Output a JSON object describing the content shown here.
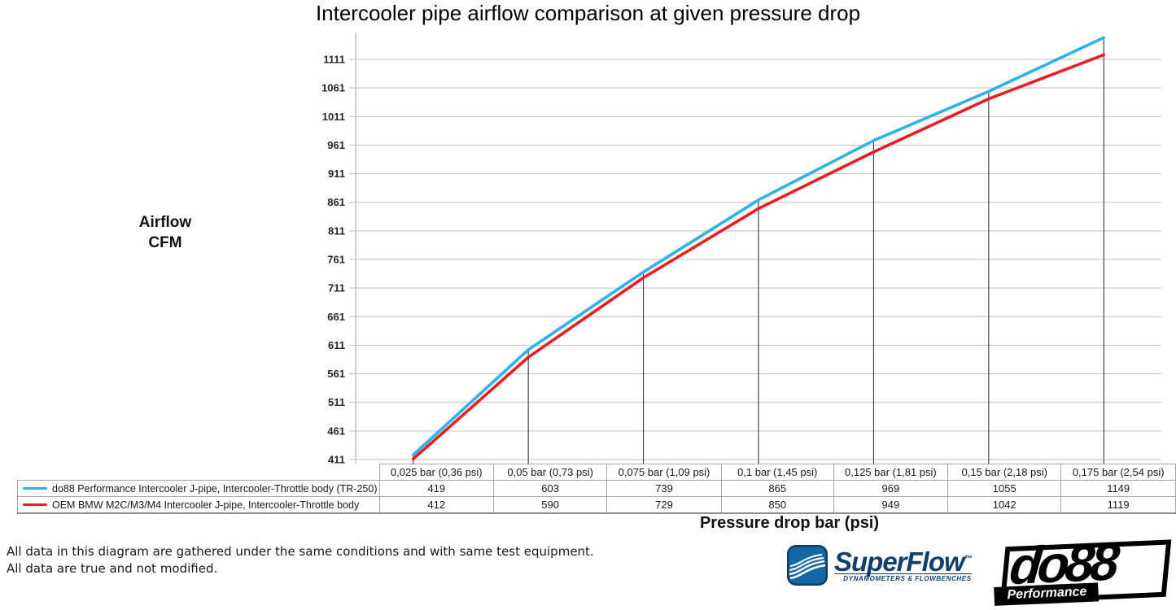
{
  "title": "Intercooler pipe airflow comparison at given pressure drop",
  "y_axis_label_line1": "Airflow",
  "y_axis_label_line2": "CFM",
  "x_axis_label": "Pressure drop bar (psi)",
  "chart_data": {
    "type": "line",
    "title": "Intercooler pipe airflow comparison at given pressure drop",
    "xlabel": "Pressure drop bar (psi)",
    "ylabel": "Airflow CFM",
    "categories": [
      "0,025 bar (0,36 psi)",
      "0,05 bar (0,73 psi)",
      "0,075 bar (1,09 psi)",
      "0,1 bar (1,45 psi)",
      "0,125 bar (1,81 psi)",
      "0,15 bar (2,18 psi)",
      "0,175 bar (2,54 psi)"
    ],
    "yticks": [
      411,
      461,
      511,
      561,
      611,
      661,
      711,
      761,
      811,
      861,
      911,
      961,
      1011,
      1061,
      1111
    ],
    "ylim": [
      411,
      1161
    ],
    "grid": true,
    "legend_position": "data-table-left",
    "series": [
      {
        "name": "do88 Performance Intercooler J-pipe, Intercooler-Throttle body (TR-250)",
        "color": "#2EB3E8",
        "values": [
          419,
          603,
          739,
          865,
          969,
          1055,
          1149
        ]
      },
      {
        "name": "OEM BMW M2C/M3/M4 Intercooler J-pipe, Intercooler-Throttle body",
        "color": "#ED1C24",
        "values": [
          412,
          590,
          729,
          850,
          949,
          1042,
          1119
        ]
      }
    ],
    "colors": {
      "gridline": "#bfbfbf",
      "axis": "#b3b3b3",
      "droplines": "#262626"
    }
  },
  "footer": {
    "line1": "All data in this diagram are gathered under the same conditions and with same test equipment.",
    "line2": "All data are true and not modified."
  },
  "logos": {
    "superflow": {
      "name": "SuperFlow",
      "tm": "™",
      "tagline": "DYNAMOMETERS & FLOWBENCHES"
    },
    "do88": {
      "name": "do88",
      "subtext": "Performance"
    }
  }
}
